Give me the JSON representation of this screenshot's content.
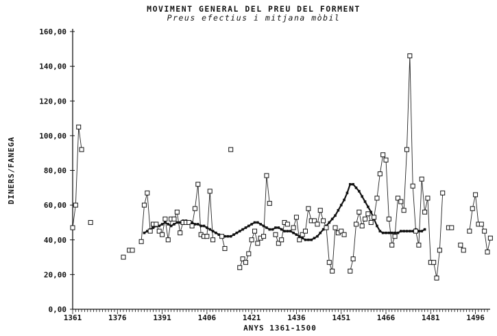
{
  "chart_data": {
    "type": "line",
    "title": "MOVIMENT GENERAL DEL PREU DEL FORMENT",
    "subtitle": "Preus efectius i mitjana mòbil",
    "xlabel": "ANYS 1361-1500",
    "ylabel": "DINERS/FANEGA",
    "xlim": [
      1361,
      1500
    ],
    "ylim": [
      0,
      160
    ],
    "x_ticks": [
      1361,
      1376,
      1391,
      1406,
      1421,
      1436,
      1451,
      1466,
      1481,
      1496
    ],
    "x_tick_labels": [
      "1361",
      "1376",
      "1391",
      "1406",
      "1421",
      "1436",
      "1451",
      "1466",
      "1481",
      "1496"
    ],
    "y_ticks": [
      0,
      20,
      40,
      60,
      80,
      100,
      120,
      140,
      160
    ],
    "y_tick_labels": [
      "0,00",
      "20,00",
      "40,00",
      "60,00",
      "80,00",
      "100,00",
      "120,00",
      "140,00",
      "160,00"
    ],
    "grid": false,
    "series": [
      {
        "name": "",
        "style": "line-with-square-markers",
        "points": [
          [
            1361,
            47
          ],
          [
            1362,
            60
          ],
          [
            1363,
            105
          ],
          [
            1364,
            92
          ],
          [
            1367,
            50
          ],
          [
            1378,
            30
          ],
          [
            1380,
            34
          ],
          [
            1381,
            34
          ],
          [
            1384,
            39
          ],
          [
            1385,
            60
          ],
          [
            1386,
            67
          ],
          [
            1387,
            45
          ],
          [
            1388,
            49
          ],
          [
            1389,
            49
          ],
          [
            1390,
            45
          ],
          [
            1391,
            43
          ],
          [
            1392,
            52
          ],
          [
            1393,
            40
          ],
          [
            1394,
            52
          ],
          [
            1395,
            52
          ],
          [
            1396,
            56
          ],
          [
            1397,
            44
          ],
          [
            1398,
            50
          ],
          [
            1399,
            50
          ],
          [
            1400,
            50
          ],
          [
            1401,
            48
          ],
          [
            1402,
            58
          ],
          [
            1403,
            72
          ],
          [
            1404,
            43
          ],
          [
            1405,
            42
          ],
          [
            1406,
            42
          ],
          [
            1407,
            68
          ],
          [
            1408,
            40
          ],
          [
            1411,
            42
          ],
          [
            1412,
            35
          ],
          [
            1414,
            92
          ],
          [
            1417,
            24
          ],
          [
            1418,
            29
          ],
          [
            1419,
            27
          ],
          [
            1420,
            32
          ],
          [
            1421,
            40
          ],
          [
            1422,
            45
          ],
          [
            1423,
            38
          ],
          [
            1424,
            41
          ],
          [
            1425,
            42
          ],
          [
            1426,
            77
          ],
          [
            1427,
            61
          ],
          [
            1429,
            43
          ],
          [
            1430,
            38
          ],
          [
            1431,
            40
          ],
          [
            1432,
            50
          ],
          [
            1433,
            49
          ],
          [
            1435,
            47
          ],
          [
            1436,
            53
          ],
          [
            1437,
            40
          ],
          [
            1438,
            43
          ],
          [
            1439,
            45
          ],
          [
            1440,
            58
          ],
          [
            1441,
            51
          ],
          [
            1442,
            51
          ],
          [
            1443,
            49
          ],
          [
            1444,
            57
          ],
          [
            1445,
            51
          ],
          [
            1446,
            47
          ],
          [
            1447,
            27
          ],
          [
            1448,
            22
          ],
          [
            1449,
            47
          ],
          [
            1450,
            44
          ],
          [
            1451,
            45
          ],
          [
            1452,
            43
          ],
          [
            1454,
            22
          ],
          [
            1455,
            29
          ],
          [
            1456,
            49
          ],
          [
            1457,
            56
          ],
          [
            1458,
            48
          ],
          [
            1459,
            52
          ],
          [
            1460,
            55
          ],
          [
            1461,
            50
          ],
          [
            1462,
            53
          ],
          [
            1463,
            64
          ],
          [
            1464,
            78
          ],
          [
            1465,
            89
          ],
          [
            1466,
            86
          ],
          [
            1467,
            52
          ],
          [
            1468,
            37
          ],
          [
            1469,
            42
          ],
          [
            1470,
            64
          ],
          [
            1471,
            62
          ],
          [
            1472,
            57
          ],
          [
            1473,
            92
          ],
          [
            1474,
            146
          ],
          [
            1475,
            71
          ],
          [
            1476,
            45
          ],
          [
            1477,
            37
          ],
          [
            1478,
            75
          ],
          [
            1479,
            56
          ],
          [
            1480,
            64
          ],
          [
            1481,
            27
          ],
          [
            1482,
            27
          ],
          [
            1483,
            18
          ],
          [
            1484,
            34
          ],
          [
            1485,
            67
          ],
          [
            1487,
            47
          ],
          [
            1488,
            47
          ],
          [
            1491,
            37
          ],
          [
            1492,
            34
          ],
          [
            1494,
            45
          ],
          [
            1495,
            58
          ],
          [
            1496,
            66
          ],
          [
            1497,
            49
          ],
          [
            1498,
            49
          ],
          [
            1499,
            45
          ],
          [
            1500,
            33
          ],
          [
            1501,
            41
          ]
        ]
      },
      {
        "name": "",
        "style": "thick-line",
        "x_start": 1385,
        "values": [
          44,
          45,
          46,
          47,
          48,
          48,
          49,
          50,
          49,
          48,
          49,
          50,
          50,
          51,
          51,
          50,
          50,
          49,
          49,
          48,
          48,
          47,
          46,
          45,
          44,
          43,
          42,
          42,
          42,
          42,
          43,
          44,
          45,
          46,
          47,
          48,
          49,
          50,
          50,
          49,
          48,
          47,
          46,
          46,
          47,
          47,
          46,
          45,
          45,
          45,
          44,
          43,
          42,
          41,
          40,
          40,
          40,
          41,
          42,
          44,
          46,
          48,
          50,
          52,
          54,
          57,
          60,
          63,
          67,
          72,
          72,
          70,
          68,
          65,
          62,
          59,
          56,
          52,
          48,
          45,
          44,
          44,
          44,
          44,
          44,
          44,
          45,
          45,
          45,
          45,
          45,
          46,
          45,
          45,
          46
        ]
      }
    ]
  }
}
